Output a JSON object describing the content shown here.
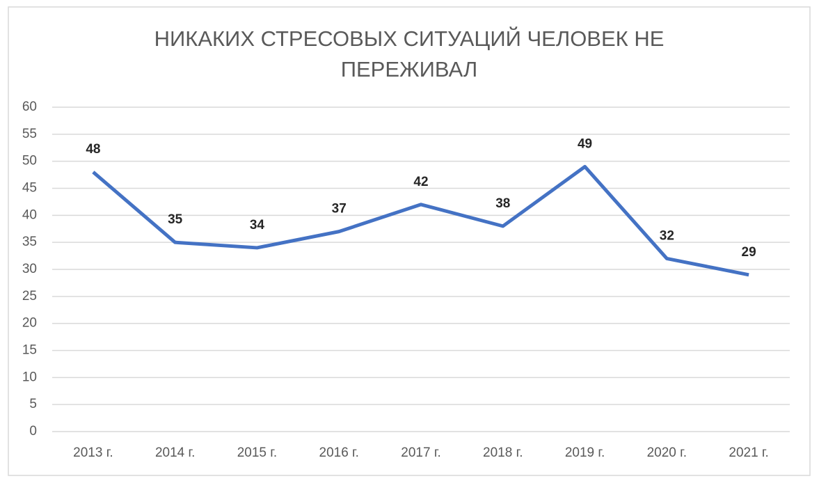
{
  "chart_data": {
    "type": "line",
    "title": "НИКАКИХ СТРЕСОВЫХ СИТУАЦИЙ ЧЕЛОВЕК НЕ ПЕРЕЖИВАЛ",
    "categories": [
      "2013 г.",
      "2014 г.",
      "2015 г.",
      "2016 г.",
      "2017 г.",
      "2018 г.",
      "2019 г.",
      "2020 г.",
      "2021 г."
    ],
    "values": [
      48,
      35,
      34,
      37,
      42,
      38,
      49,
      32,
      29
    ],
    "color": "#4472c4",
    "ylim": [
      0,
      60
    ],
    "yticks": [
      0,
      5,
      10,
      15,
      20,
      25,
      30,
      35,
      40,
      45,
      50,
      55,
      60
    ],
    "grid": true
  }
}
